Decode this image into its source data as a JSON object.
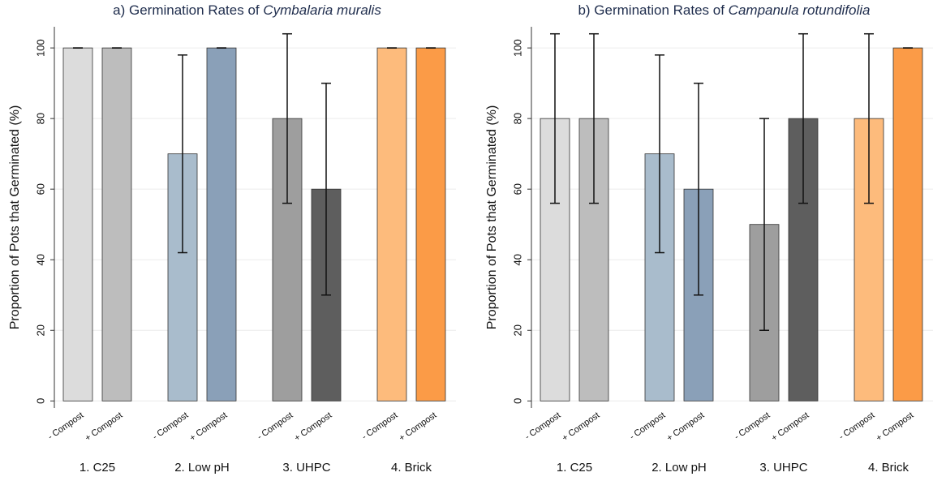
{
  "chart_data": [
    {
      "type": "bar",
      "title": "a) Germination Rates of",
      "title_italic": "Cymbalaria muralis",
      "ylabel": "Proportion of Pots that Germinated (%)",
      "groups": [
        "1. C25",
        "2. Low pH",
        "3. UHPC",
        "4. Brick"
      ],
      "categories": [
        "- Compost",
        "+ Compost",
        "- Compost",
        "+ Compost",
        "- Compost",
        "+ Compost",
        "- Compost",
        "+ Compost"
      ],
      "values": [
        100,
        100,
        70,
        100,
        80,
        60,
        100,
        100
      ],
      "errors": [
        0,
        0,
        28,
        0,
        24,
        30,
        0,
        0
      ],
      "colors": [
        "#dcdcdc",
        "#bdbdbd",
        "#a9bccc",
        "#8aa0b8",
        "#9e9e9e",
        "#5e5e5e",
        "#fdbb7c",
        "#fb9b47"
      ],
      "ylim": [
        -2,
        106
      ],
      "yticks": [
        0,
        20,
        40,
        60,
        80,
        100
      ],
      "grid": true
    },
    {
      "type": "bar",
      "title": "b) Germination Rates of",
      "title_italic": "Campanula rotundifolia",
      "ylabel": "Proportion of Pots that Germinated (%)",
      "groups": [
        "1. C25",
        "2. Low pH",
        "3. UHPC",
        "4. Brick"
      ],
      "categories": [
        "- Compost",
        "+ Compost",
        "- Compost",
        "+ Compost",
        "- Compost",
        "+ Compost",
        "- Compost",
        "+ Compost"
      ],
      "values": [
        80,
        80,
        70,
        60,
        50,
        80,
        80,
        100
      ],
      "errors": [
        24,
        24,
        28,
        30,
        30,
        24,
        24,
        0
      ],
      "colors": [
        "#dcdcdc",
        "#bdbdbd",
        "#a9bccc",
        "#8aa0b8",
        "#9e9e9e",
        "#5e5e5e",
        "#fdbb7c",
        "#fb9b47"
      ],
      "ylim": [
        -2,
        106
      ],
      "yticks": [
        0,
        20,
        40,
        60,
        80,
        100
      ],
      "grid": true
    }
  ]
}
